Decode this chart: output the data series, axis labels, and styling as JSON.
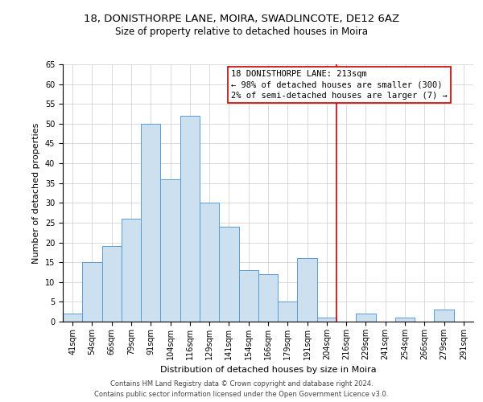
{
  "title": "18, DONISTHORPE LANE, MOIRA, SWADLINCOTE, DE12 6AZ",
  "subtitle": "Size of property relative to detached houses in Moira",
  "xlabel": "Distribution of detached houses by size in Moira",
  "ylabel": "Number of detached properties",
  "bar_labels": [
    "41sqm",
    "54sqm",
    "66sqm",
    "79sqm",
    "91sqm",
    "104sqm",
    "116sqm",
    "129sqm",
    "141sqm",
    "154sqm",
    "166sqm",
    "179sqm",
    "191sqm",
    "204sqm",
    "216sqm",
    "229sqm",
    "241sqm",
    "254sqm",
    "266sqm",
    "279sqm",
    "291sqm"
  ],
  "bar_values": [
    2,
    15,
    19,
    26,
    50,
    36,
    52,
    30,
    24,
    13,
    12,
    5,
    16,
    1,
    0,
    2,
    0,
    1,
    0,
    3,
    0
  ],
  "bar_color": "#cce0f0",
  "bar_edge_color": "#5b9bd5",
  "vline_color": "#cc0000",
  "vline_position": 13.5,
  "annotation_line1": "18 DONISTHORPE LANE: 213sqm",
  "annotation_line2": "← 98% of detached houses are smaller (300)",
  "annotation_line3": "2% of semi-detached houses are larger (7) →",
  "annotation_box_color": "#ffffff",
  "annotation_box_edge_color": "#cc0000",
  "ylim": [
    0,
    65
  ],
  "yticks": [
    0,
    5,
    10,
    15,
    20,
    25,
    30,
    35,
    40,
    45,
    50,
    55,
    60,
    65
  ],
  "footer_line1": "Contains HM Land Registry data © Crown copyright and database right 2024.",
  "footer_line2": "Contains public sector information licensed under the Open Government Licence v3.0.",
  "title_fontsize": 9.5,
  "subtitle_fontsize": 8.5,
  "axis_label_fontsize": 8,
  "tick_fontsize": 7,
  "annotation_fontsize": 7.5,
  "footer_fontsize": 6
}
